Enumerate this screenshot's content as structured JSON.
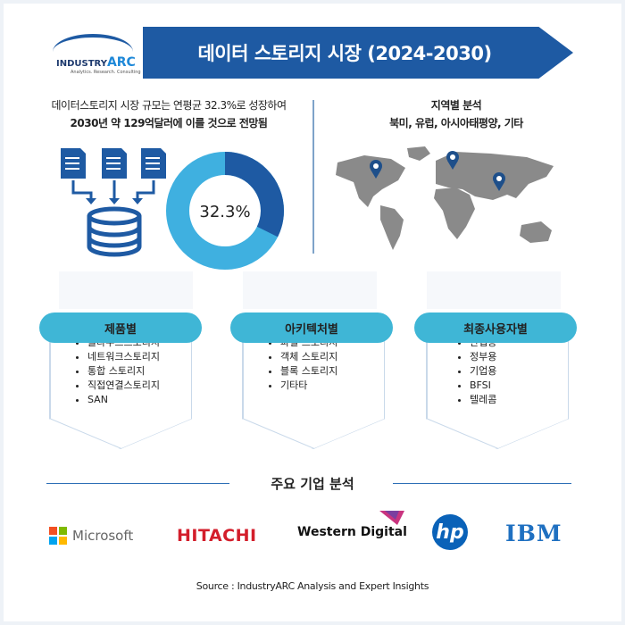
{
  "header": {
    "title": "데이터 스토리지 시장 (2024-2030)",
    "logo_name_prefix": "INDUSTRY",
    "logo_name_suffix": "ARC",
    "logo_tagline": "Analytics. Research. Consulting"
  },
  "summary": {
    "line1": "데이터스토리지 시장 규모는 연평균 32.3%로 성장하여",
    "line2": "2030년 약 129억달러에 이를 것으로 전망됨",
    "donut_label": "32.3%",
    "donut_value_percent": 32.3,
    "colors": {
      "highlight": "#1e5aa3",
      "rest": "#3fb0e0"
    }
  },
  "region": {
    "title": "지역별 분석",
    "regions": "북미, 유럽, 아시아태평양, 기타"
  },
  "segments": [
    {
      "title": "제품별",
      "items": [
        "클라우드스토리지",
        "네트워크스토리지",
        "통합 스토리지",
        "직접연결스토리지",
        "SAN"
      ]
    },
    {
      "title": "아키텍처별",
      "items": [
        "파일 스토리지",
        "객체 스토리지",
        "블록 스토리지",
        "기타타"
      ]
    },
    {
      "title": "최종사용자별",
      "items": [
        "산업용",
        "정부용",
        "기업용",
        "BFSI",
        "텔레콤"
      ]
    }
  ],
  "companies": {
    "title": "주요 기업 분석",
    "logos": [
      "Microsoft",
      "HITACHI",
      "Western Digital",
      "hp",
      "IBM"
    ]
  },
  "source": "Source : IndustryARC Analysis and Expert Insights"
}
